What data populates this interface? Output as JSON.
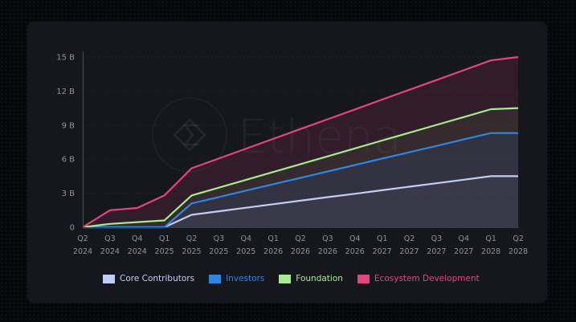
{
  "watermark": "Ethena",
  "chart_data": {
    "type": "area",
    "stacked": false,
    "title": "",
    "xlabel": "",
    "ylabel": "",
    "ylim": [
      0,
      15
    ],
    "y_unit": "B",
    "y_ticks": [
      "0",
      "3 B",
      "6 B",
      "9 B",
      "12 B",
      "15 B"
    ],
    "y_tick_values": [
      0,
      3,
      6,
      9,
      12,
      15
    ],
    "grid": true,
    "legend_position": "bottom",
    "categories": [
      [
        "Q2",
        "2024"
      ],
      [
        "Q3",
        "2024"
      ],
      [
        "Q4",
        "2024"
      ],
      [
        "Q1",
        "2025"
      ],
      [
        "Q2",
        "2025"
      ],
      [
        "Q3",
        "2025"
      ],
      [
        "Q4",
        "2025"
      ],
      [
        "Q1",
        "2026"
      ],
      [
        "Q2",
        "2026"
      ],
      [
        "Q3",
        "2026"
      ],
      [
        "Q4",
        "2026"
      ],
      [
        "Q1",
        "2027"
      ],
      [
        "Q2",
        "2027"
      ],
      [
        "Q3",
        "2027"
      ],
      [
        "Q4",
        "2027"
      ],
      [
        "Q1",
        "2028"
      ],
      [
        "Q2",
        "2028"
      ]
    ],
    "series": [
      {
        "name": "Ecosystem Development",
        "color": "#e5457f",
        "values": [
          0,
          1.5,
          1.7,
          2.8,
          5.2,
          6.06,
          6.93,
          7.79,
          8.65,
          9.52,
          10.38,
          11.25,
          12.11,
          12.97,
          13.84,
          14.7,
          15.0
        ]
      },
      {
        "name": "Foundation",
        "color": "#a8ea8e",
        "values": [
          0,
          0.3,
          0.45,
          0.6,
          2.8,
          3.49,
          4.18,
          4.87,
          5.56,
          6.25,
          6.95,
          7.64,
          8.33,
          9.02,
          9.71,
          10.4,
          10.5
        ]
      },
      {
        "name": "Investors",
        "color": "#2f86e0",
        "values": [
          0,
          0,
          0,
          0,
          2.1,
          2.66,
          3.23,
          3.79,
          4.35,
          4.92,
          5.48,
          6.05,
          6.61,
          7.17,
          7.74,
          8.3,
          8.3
        ]
      },
      {
        "name": "Core Contributors",
        "color": "#c3cdf3",
        "values": [
          0,
          0,
          0,
          0,
          1.1,
          1.41,
          1.72,
          2.03,
          2.34,
          2.65,
          2.95,
          3.26,
          3.57,
          3.88,
          4.19,
          4.5,
          4.5
        ]
      }
    ]
  },
  "legend": [
    {
      "label": "Core Contributors",
      "color": "#c3cdf3",
      "text_color": "#c3cdf3"
    },
    {
      "label": "Investors",
      "color": "#2f86e0",
      "text_color": "#2f86e0"
    },
    {
      "label": "Foundation",
      "color": "#a8ea8e",
      "text_color": "#a8ea8e"
    },
    {
      "label": "Ecosystem Development",
      "color": "#e5457f",
      "text_color": "#e5457f"
    }
  ]
}
